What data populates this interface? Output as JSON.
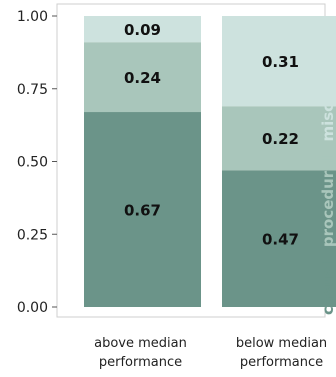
{
  "chart_data": {
    "type": "bar",
    "stacked": true,
    "categories": [
      [
        "above median",
        "performance"
      ],
      [
        "below median",
        "performance"
      ]
    ],
    "series": [
      {
        "name": "casual",
        "values": [
          0.67,
          0.47
        ],
        "color": "#6b9489"
      },
      {
        "name": "procedural",
        "values": [
          0.24,
          0.22
        ],
        "color": "#a9c6bb"
      },
      {
        "name": "misc.",
        "values": [
          0.09,
          0.31
        ],
        "color": "#cde2de"
      }
    ],
    "yticks": [
      "0.00",
      "0.25",
      "0.50",
      "0.75",
      "1.00"
    ],
    "ylim": [
      0,
      1
    ],
    "grid": false,
    "legend_position": "right-vertical",
    "title": "",
    "xlabel": "",
    "ylabel": ""
  }
}
